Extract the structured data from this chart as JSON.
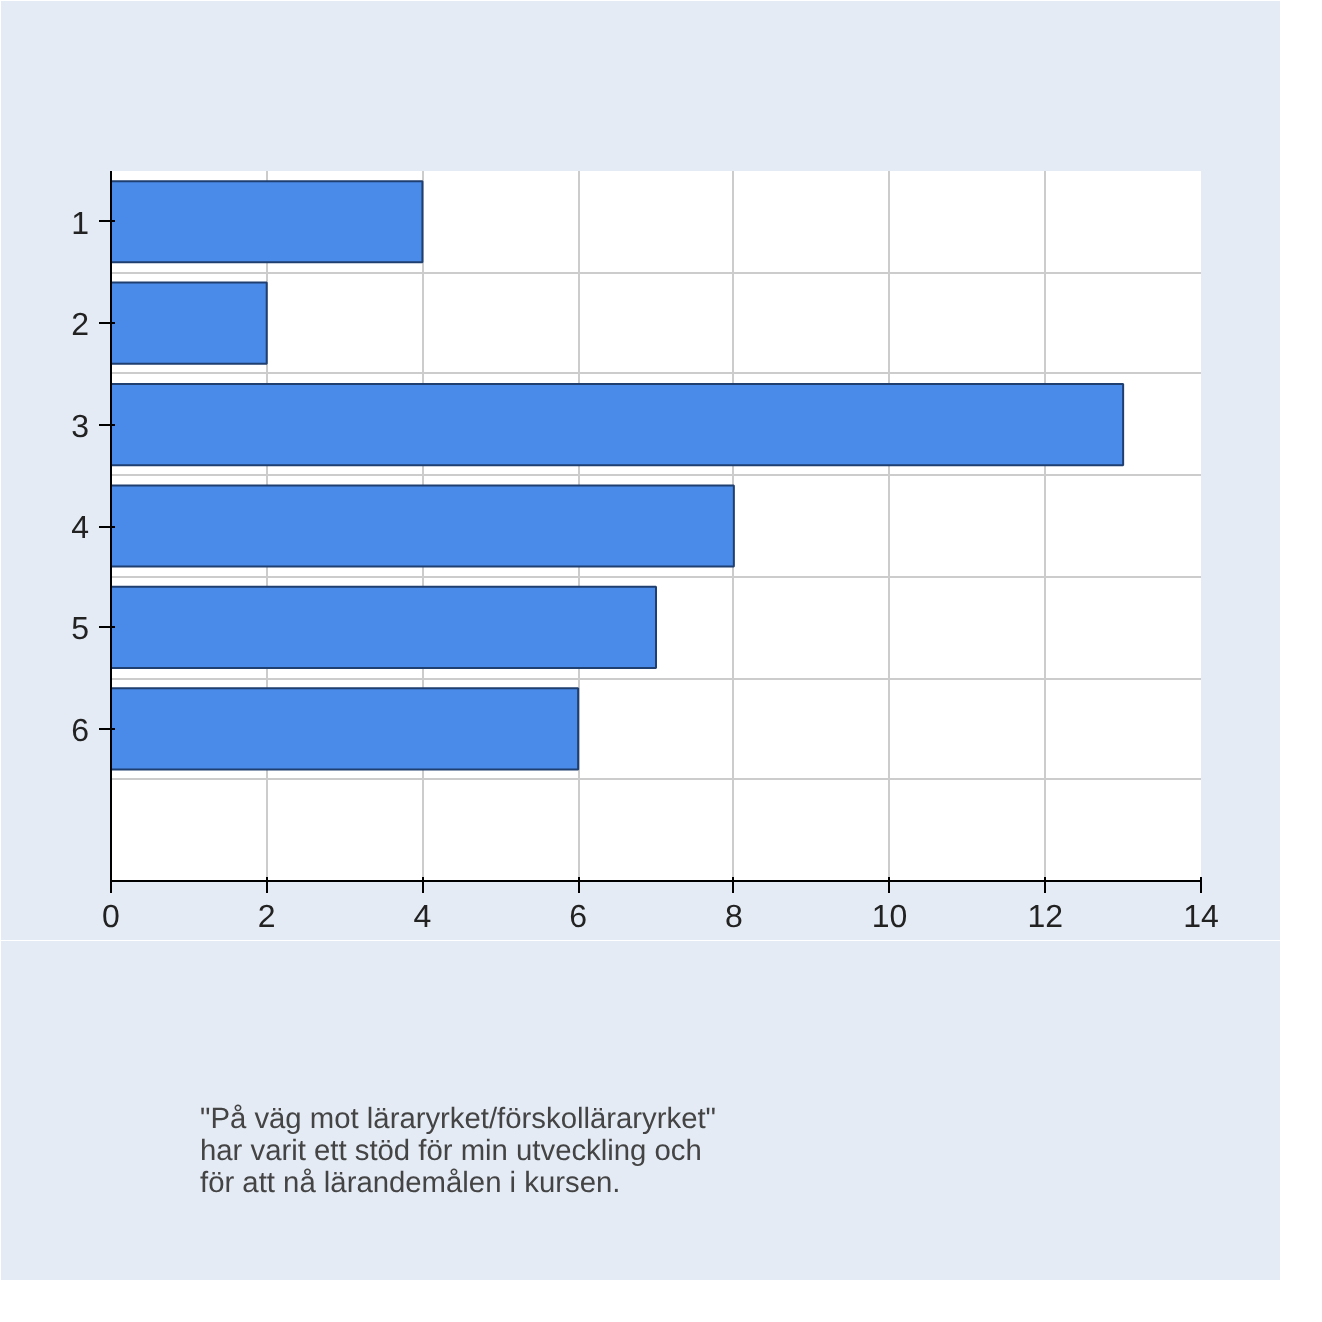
{
  "chart_data": {
    "type": "bar",
    "orientation": "horizontal",
    "categories": [
      "1",
      "2",
      "3",
      "4",
      "5",
      "6"
    ],
    "series": [
      {
        "name": "\"På väg mot läraryrket/förskolläraryrket\" har varit ett stöd för min utveckling och för att nå lärandemålen i kursen.",
        "color": "#4a8ae8",
        "values": [
          4,
          2,
          13,
          8,
          7,
          6
        ]
      }
    ],
    "xlim": [
      0,
      14
    ],
    "xticks": [
      0,
      2,
      4,
      6,
      8,
      10,
      12,
      14
    ],
    "grid": true,
    "legend": "bottom"
  }
}
